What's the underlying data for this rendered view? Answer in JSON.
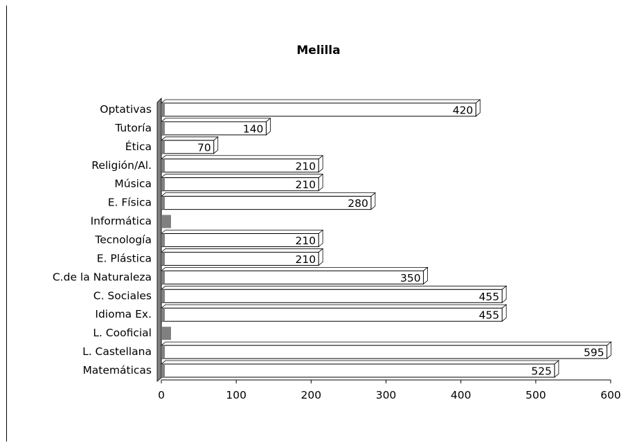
{
  "chart_data": {
    "type": "bar",
    "orientation": "horizontal",
    "style": "3d",
    "title": "Melilla",
    "xlabel": "",
    "ylabel": "",
    "xlim": [
      0,
      600
    ],
    "x_ticks": [
      0,
      100,
      200,
      300,
      400,
      500,
      600
    ],
    "grid": false,
    "legend": "none",
    "categories": [
      "Optativas",
      "Tutoría",
      "Ética",
      "Religión/Al.",
      "Música",
      "E. Física",
      "Informática",
      "Tecnología",
      "E. Plástica",
      "C.de la Naturaleza",
      "C. Sociales",
      "Idioma Ex.",
      "L. Cooficial",
      "L. Castellana",
      "Matemáticas"
    ],
    "series": [
      {
        "values": [
          420,
          140,
          70,
          210,
          210,
          280,
          null,
          210,
          210,
          350,
          455,
          455,
          null,
          595,
          525
        ],
        "labels": [
          "420",
          "140",
          "70",
          "210",
          "210",
          "280",
          "",
          "210",
          "210",
          "350",
          "455",
          "455",
          "",
          "595",
          "525"
        ]
      }
    ],
    "colors": {
      "bar_fill": "#ffffff",
      "bar_outline": "#000000",
      "wall": "#808080"
    }
  }
}
